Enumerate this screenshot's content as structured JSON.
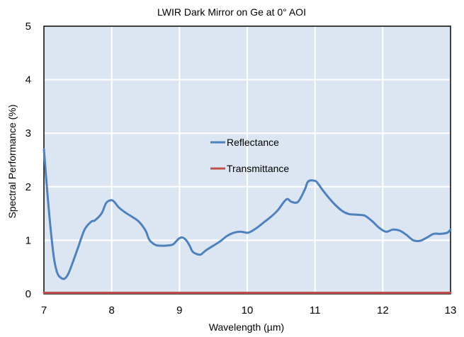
{
  "chart_data": {
    "type": "line",
    "title": "LWIR Dark Mirror on Ge at 0° AOI",
    "xlabel": "Wavelength (µm)",
    "ylabel": "Spectral Performance (%)",
    "xlim": [
      7,
      13
    ],
    "ylim": [
      0,
      5
    ],
    "x_ticks": [
      "7",
      "8",
      "9",
      "10",
      "11",
      "12",
      "13"
    ],
    "y_ticks": [
      "0",
      "1",
      "2",
      "3",
      "4",
      "5"
    ],
    "grid": true,
    "background": "#dce6f2",
    "grid_color": "#ffffff",
    "legend_position": "center",
    "series": [
      {
        "name": "Reflectance",
        "color": "#4f81bd",
        "x": [
          7.0,
          7.05,
          7.1,
          7.15,
          7.2,
          7.25,
          7.3,
          7.35,
          7.4,
          7.5,
          7.6,
          7.7,
          7.75,
          7.85,
          7.92,
          8.0,
          8.05,
          8.1,
          8.2,
          8.3,
          8.4,
          8.5,
          8.55,
          8.6,
          8.65,
          8.7,
          8.8,
          8.9,
          8.95,
          9.0,
          9.05,
          9.1,
          9.15,
          9.2,
          9.3,
          9.35,
          9.4,
          9.5,
          9.6,
          9.7,
          9.8,
          9.9,
          10.0,
          10.05,
          10.15,
          10.25,
          10.35,
          10.45,
          10.55,
          10.6,
          10.65,
          10.75,
          10.85,
          10.9,
          11.0,
          11.05,
          11.1,
          11.2,
          11.3,
          11.4,
          11.5,
          11.6,
          11.7,
          11.75,
          11.85,
          11.95,
          12.05,
          12.15,
          12.25,
          12.35,
          12.45,
          12.55,
          12.65,
          12.75,
          12.85,
          12.95,
          13.0
        ],
        "y": [
          2.7,
          1.9,
          1.2,
          0.65,
          0.38,
          0.3,
          0.28,
          0.35,
          0.5,
          0.85,
          1.2,
          1.35,
          1.37,
          1.5,
          1.7,
          1.75,
          1.7,
          1.62,
          1.52,
          1.44,
          1.35,
          1.18,
          1.02,
          0.95,
          0.91,
          0.9,
          0.9,
          0.92,
          0.98,
          1.04,
          1.05,
          1.0,
          0.9,
          0.78,
          0.73,
          0.77,
          0.82,
          0.9,
          0.98,
          1.08,
          1.14,
          1.16,
          1.14,
          1.16,
          1.24,
          1.34,
          1.44,
          1.56,
          1.73,
          1.77,
          1.72,
          1.72,
          1.95,
          2.1,
          2.11,
          2.05,
          1.96,
          1.8,
          1.66,
          1.55,
          1.49,
          1.48,
          1.47,
          1.45,
          1.35,
          1.23,
          1.16,
          1.2,
          1.18,
          1.1,
          1.0,
          0.99,
          1.05,
          1.12,
          1.12,
          1.14,
          1.2
        ]
      },
      {
        "name": "Transmittance",
        "color": "#c0504d",
        "x": [
          7.0,
          13.0
        ],
        "y": [
          0.02,
          0.02
        ]
      }
    ]
  }
}
